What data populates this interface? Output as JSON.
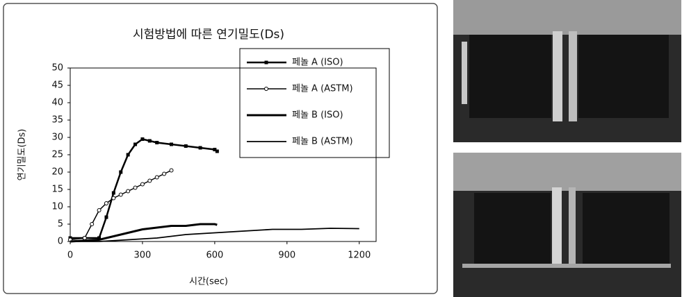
{
  "chart_data": {
    "type": "line",
    "title": "시험방법에 따른 연기밀도(Ds)",
    "x_label": "시간(sec)",
    "y_label": "연기밀도(Ds)",
    "xlim": [
      0,
      1270
    ],
    "xticks": [
      0,
      300,
      600,
      900,
      1200
    ],
    "ylim": [
      0,
      50
    ],
    "yticks": [
      0,
      5,
      10,
      15,
      20,
      25,
      30,
      35,
      40,
      45,
      50
    ],
    "legend": "upper right",
    "series": [
      {
        "name": "페놀 A (ISO)",
        "color": "#000000",
        "marker": "square",
        "line_width": 2.5,
        "x": [
          0,
          60,
          120,
          150,
          180,
          210,
          240,
          270,
          300,
          330,
          360,
          420,
          480,
          540,
          600,
          610
        ],
        "values": [
          1,
          1,
          1,
          7,
          14,
          20,
          25,
          28,
          29.5,
          29,
          28.5,
          28,
          27.5,
          27,
          26.5,
          26
        ]
      },
      {
        "name": "페놀 A (ASTM)",
        "color": "#000000",
        "marker": "circle",
        "line_width": 1.5,
        "x": [
          0,
          60,
          90,
          120,
          150,
          180,
          210,
          240,
          270,
          300,
          330,
          360,
          390,
          420
        ],
        "values": [
          0.5,
          1,
          5,
          9,
          11,
          12.5,
          13.5,
          14.5,
          15.5,
          16.5,
          17.5,
          18.5,
          19.5,
          20.5
        ]
      },
      {
        "name": "페놀 B (ISO)",
        "color": "#000000",
        "marker": "none",
        "line_width": 3,
        "x": [
          0,
          120,
          180,
          240,
          300,
          360,
          420,
          480,
          540,
          600,
          610
        ],
        "values": [
          0,
          0.5,
          1.5,
          2.5,
          3.5,
          4,
          4.5,
          4.5,
          5,
          5,
          4.8
        ]
      },
      {
        "name": "페놀 B (ASTM)",
        "color": "#000000",
        "marker": "none",
        "line_width": 1.8,
        "x": [
          0,
          120,
          240,
          360,
          480,
          600,
          720,
          840,
          960,
          1080,
          1200
        ],
        "values": [
          0,
          0,
          0.5,
          1,
          2,
          2.5,
          3,
          3.5,
          3.5,
          3.8,
          3.7
        ]
      }
    ]
  }
}
